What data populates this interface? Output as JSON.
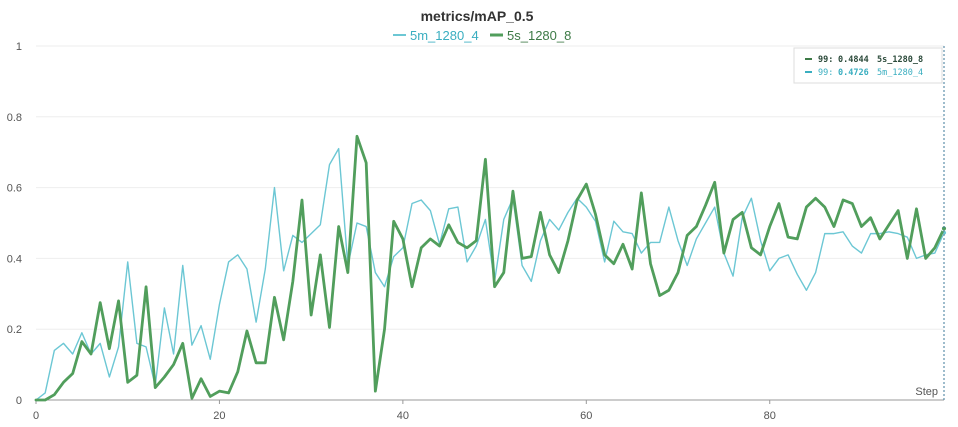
{
  "chart_data": {
    "type": "line",
    "title": "metrics/mAP_0.5",
    "xlabel": "Step",
    "ylabel": "",
    "xlim": [
      0,
      99
    ],
    "ylim": [
      0,
      1
    ],
    "xticks": [
      0,
      20,
      40,
      60,
      80
    ],
    "yticks": [
      0,
      0.2,
      0.4,
      0.6,
      0.8,
      1
    ],
    "ytick_labels": [
      "0",
      "0.2",
      "0.4",
      "0.6",
      "0.8",
      "1"
    ],
    "grid": true,
    "legend_position": "top",
    "series": [
      {
        "name": "5m_1280_4",
        "color": "#6cc7d4",
        "values": [
          0,
          0.02,
          0.14,
          0.16,
          0.13,
          0.19,
          0.13,
          0.16,
          0.065,
          0.15,
          0.39,
          0.16,
          0.15,
          0.04,
          0.26,
          0.13,
          0.38,
          0.155,
          0.21,
          0.115,
          0.27,
          0.39,
          0.41,
          0.37,
          0.22,
          0.37,
          0.6,
          0.365,
          0.465,
          0.445,
          0.47,
          0.495,
          0.665,
          0.71,
          0.38,
          0.5,
          0.49,
          0.36,
          0.32,
          0.405,
          0.43,
          0.555,
          0.565,
          0.535,
          0.44,
          0.54,
          0.545,
          0.39,
          0.435,
          0.51,
          0.335,
          0.51,
          0.57,
          0.38,
          0.335,
          0.45,
          0.51,
          0.48,
          0.53,
          0.57,
          0.545,
          0.505,
          0.39,
          0.505,
          0.475,
          0.47,
          0.415,
          0.445,
          0.445,
          0.545,
          0.45,
          0.38,
          0.455,
          0.5,
          0.545,
          0.415,
          0.35,
          0.515,
          0.57,
          0.45,
          0.365,
          0.4,
          0.41,
          0.355,
          0.31,
          0.36,
          0.47,
          0.47,
          0.475,
          0.435,
          0.415,
          0.47,
          0.47,
          0.475,
          0.47,
          0.46,
          0.4,
          0.41,
          0.415,
          0.4726
        ]
      },
      {
        "name": "5s_1280_8",
        "color": "#519e5c",
        "values": [
          0,
          0,
          0.015,
          0.05,
          0.075,
          0.165,
          0.13,
          0.275,
          0.145,
          0.28,
          0.05,
          0.07,
          0.32,
          0.035,
          0.065,
          0.1,
          0.16,
          0.005,
          0.06,
          0.01,
          0.025,
          0.02,
          0.08,
          0.195,
          0.105,
          0.105,
          0.29,
          0.17,
          0.335,
          0.565,
          0.24,
          0.41,
          0.205,
          0.49,
          0.36,
          0.745,
          0.67,
          0.025,
          0.2,
          0.505,
          0.455,
          0.32,
          0.43,
          0.455,
          0.435,
          0.495,
          0.445,
          0.43,
          0.45,
          0.68,
          0.32,
          0.36,
          0.59,
          0.4,
          0.405,
          0.53,
          0.41,
          0.36,
          0.45,
          0.565,
          0.61,
          0.525,
          0.41,
          0.385,
          0.44,
          0.37,
          0.585,
          0.385,
          0.295,
          0.31,
          0.36,
          0.465,
          0.49,
          0.55,
          0.615,
          0.415,
          0.51,
          0.53,
          0.43,
          0.41,
          0.49,
          0.555,
          0.46,
          0.455,
          0.545,
          0.57,
          0.545,
          0.49,
          0.565,
          0.555,
          0.49,
          0.515,
          0.455,
          0.495,
          0.535,
          0.4,
          0.54,
          0.4,
          0.43,
          0.4844
        ]
      }
    ],
    "tooltip": {
      "entries": [
        {
          "step_label": "99:",
          "value_text": "0.4844",
          "series_name": "5s_1280_8",
          "color": "#3d7a46"
        },
        {
          "step_label": "99:",
          "value_text": "0.4726",
          "series_name": "5m_1280_4",
          "color": "#3aaec0"
        }
      ]
    }
  }
}
